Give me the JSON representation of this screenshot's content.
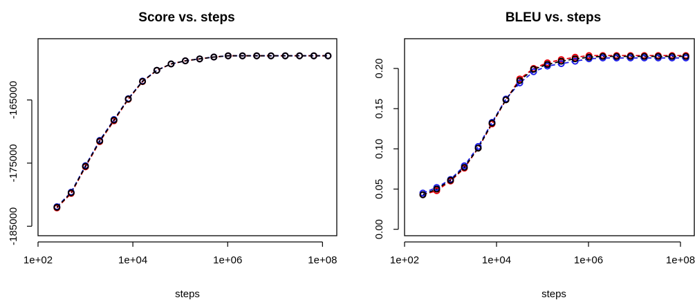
{
  "chart_data": [
    {
      "type": "scatter",
      "title": "Score vs. steps",
      "xlabel": "steps",
      "ylabel": "",
      "xscale": "log",
      "xlim": [
        100,
        200000000
      ],
      "ylim": [
        -186500,
        -155300
      ],
      "xticks": [
        {
          "v": 100,
          "label": "1e+02"
        },
        {
          "v": 10000,
          "label": "1e+04"
        },
        {
          "v": 1000000,
          "label": "1e+06"
        },
        {
          "v": 100000000,
          "label": "1e+08"
        }
      ],
      "yticks": [
        {
          "v": -185000,
          "label": "-185000"
        },
        {
          "v": -175000,
          "label": "-175000"
        },
        {
          "v": -165000,
          "label": "-165000"
        }
      ],
      "x": [
        250,
        500,
        1000,
        2000,
        4000,
        8000,
        16000,
        32000,
        64000,
        128000,
        256000,
        512000,
        1024000,
        2048000,
        4096000,
        8192000,
        16384000,
        32768000,
        65536000,
        131072000
      ],
      "series": [
        {
          "color": "#e8000b",
          "values": [
            -182100,
            -179800,
            -175600,
            -171600,
            -168300,
            -164900,
            -162100,
            -160300,
            -159300,
            -158800,
            -158500,
            -158200,
            -158000,
            -158000,
            -158000,
            -158000,
            -158000,
            -158000,
            -158000,
            -158000
          ]
        },
        {
          "color": "#1f1fe8",
          "values": [
            -181900,
            -179600,
            -175400,
            -171400,
            -168100,
            -164800,
            -162000,
            -160300,
            -159300,
            -158800,
            -158500,
            -158200,
            -158000,
            -158000,
            -158000,
            -158000,
            -158000,
            -158000,
            -158000,
            -158000
          ]
        },
        {
          "color": "#000000",
          "values": [
            -182000,
            -179700,
            -175500,
            -171500,
            -168200,
            -164850,
            -162050,
            -160300,
            -159300,
            -158800,
            -158500,
            -158200,
            -158000,
            -158000,
            -158000,
            -158000,
            -158000,
            -158000,
            -158000,
            -158000
          ]
        }
      ]
    },
    {
      "type": "scatter",
      "title": "BLEU vs. steps",
      "xlabel": "steps",
      "ylabel": "",
      "xscale": "log",
      "xlim": [
        100,
        200000000
      ],
      "ylim": [
        -0.008,
        0.237
      ],
      "xticks": [
        {
          "v": 100,
          "label": "1e+02"
        },
        {
          "v": 10000,
          "label": "1e+04"
        },
        {
          "v": 1000000,
          "label": "1e+06"
        },
        {
          "v": 100000000,
          "label": "1e+08"
        }
      ],
      "yticks": [
        {
          "v": 0.0,
          "label": "0.00"
        },
        {
          "v": 0.05,
          "label": "0.05"
        },
        {
          "v": 0.1,
          "label": "0.10"
        },
        {
          "v": 0.15,
          "label": "0.15"
        },
        {
          "v": 0.2,
          "label": "0.20"
        }
      ],
      "x": [
        250,
        500,
        1000,
        2000,
        4000,
        8000,
        16000,
        32000,
        64000,
        128000,
        256000,
        512000,
        1024000,
        2048000,
        4096000,
        8192000,
        16384000,
        32768000,
        65536000,
        131072000
      ],
      "series": [
        {
          "color": "#e8000b",
          "values": [
            0.043,
            0.048,
            0.06,
            0.076,
            0.101,
            0.131,
            0.161,
            0.187,
            0.2,
            0.207,
            0.211,
            0.214,
            0.216,
            0.216,
            0.216,
            0.216,
            0.216,
            0.216,
            0.216,
            0.216
          ]
        },
        {
          "color": "#1f1fe8",
          "values": [
            0.045,
            0.052,
            0.062,
            0.079,
            0.103,
            0.133,
            0.162,
            0.182,
            0.196,
            0.203,
            0.206,
            0.209,
            0.212,
            0.213,
            0.213,
            0.213,
            0.213,
            0.213,
            0.213,
            0.213
          ]
        },
        {
          "color": "#000000",
          "values": [
            0.043,
            0.05,
            0.061,
            0.077,
            0.101,
            0.132,
            0.161,
            0.185,
            0.199,
            0.205,
            0.209,
            0.212,
            0.214,
            0.215,
            0.215,
            0.215,
            0.215,
            0.215,
            0.215,
            0.215
          ]
        }
      ]
    }
  ]
}
